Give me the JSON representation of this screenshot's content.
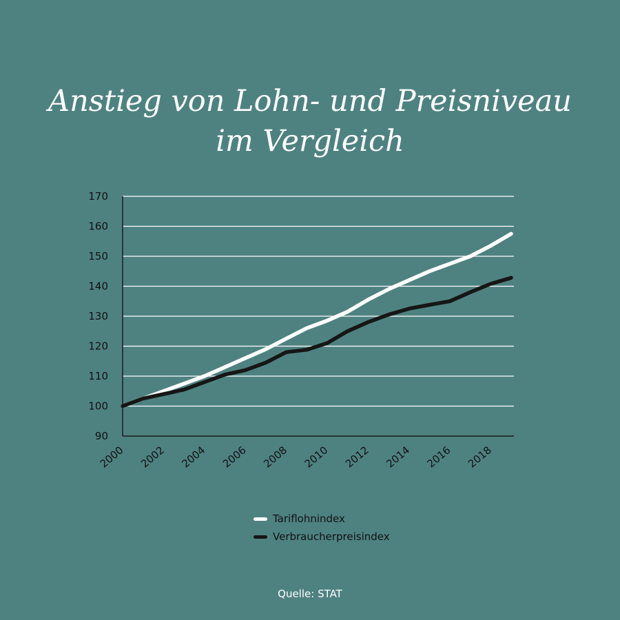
{
  "chart_data": {
    "type": "line",
    "title_lines": [
      "Anstieg von Lohn- und Preisniveau",
      "im Vergleich"
    ],
    "x": [
      2000,
      2001,
      2002,
      2003,
      2004,
      2005,
      2006,
      2007,
      2008,
      2009,
      2010,
      2011,
      2012,
      2013,
      2014,
      2015,
      2016,
      2017,
      2018,
      2019
    ],
    "x_ticks": [
      "2000",
      "2002",
      "2004",
      "2006",
      "2008",
      "2010",
      "2012",
      "2014",
      "2016",
      "2018"
    ],
    "y_ticks": [
      90,
      100,
      110,
      120,
      130,
      140,
      150,
      160,
      170
    ],
    "ylim": [
      90,
      170
    ],
    "xlim": [
      2000,
      2019
    ],
    "grid": true,
    "series": [
      {
        "name": "Tariflohnindex",
        "color": "#ffffff",
        "values": [
          100,
          102.5,
          105,
          107.5,
          110,
          113,
          116,
          119,
          122.5,
          126,
          128.5,
          131.5,
          135.5,
          139,
          142,
          145,
          147.5,
          150,
          153.5,
          157.5
        ]
      },
      {
        "name": "Verbraucherpreisindex",
        "color": "#161616",
        "values": [
          100,
          102.5,
          104,
          105.5,
          108,
          110.5,
          112,
          114.5,
          118,
          118.8,
          121,
          125,
          128,
          130.5,
          132.5,
          133.8,
          135,
          138,
          140.8,
          142.8
        ]
      }
    ],
    "legend_position": "bottom-center",
    "source": "Quelle: STAT"
  }
}
